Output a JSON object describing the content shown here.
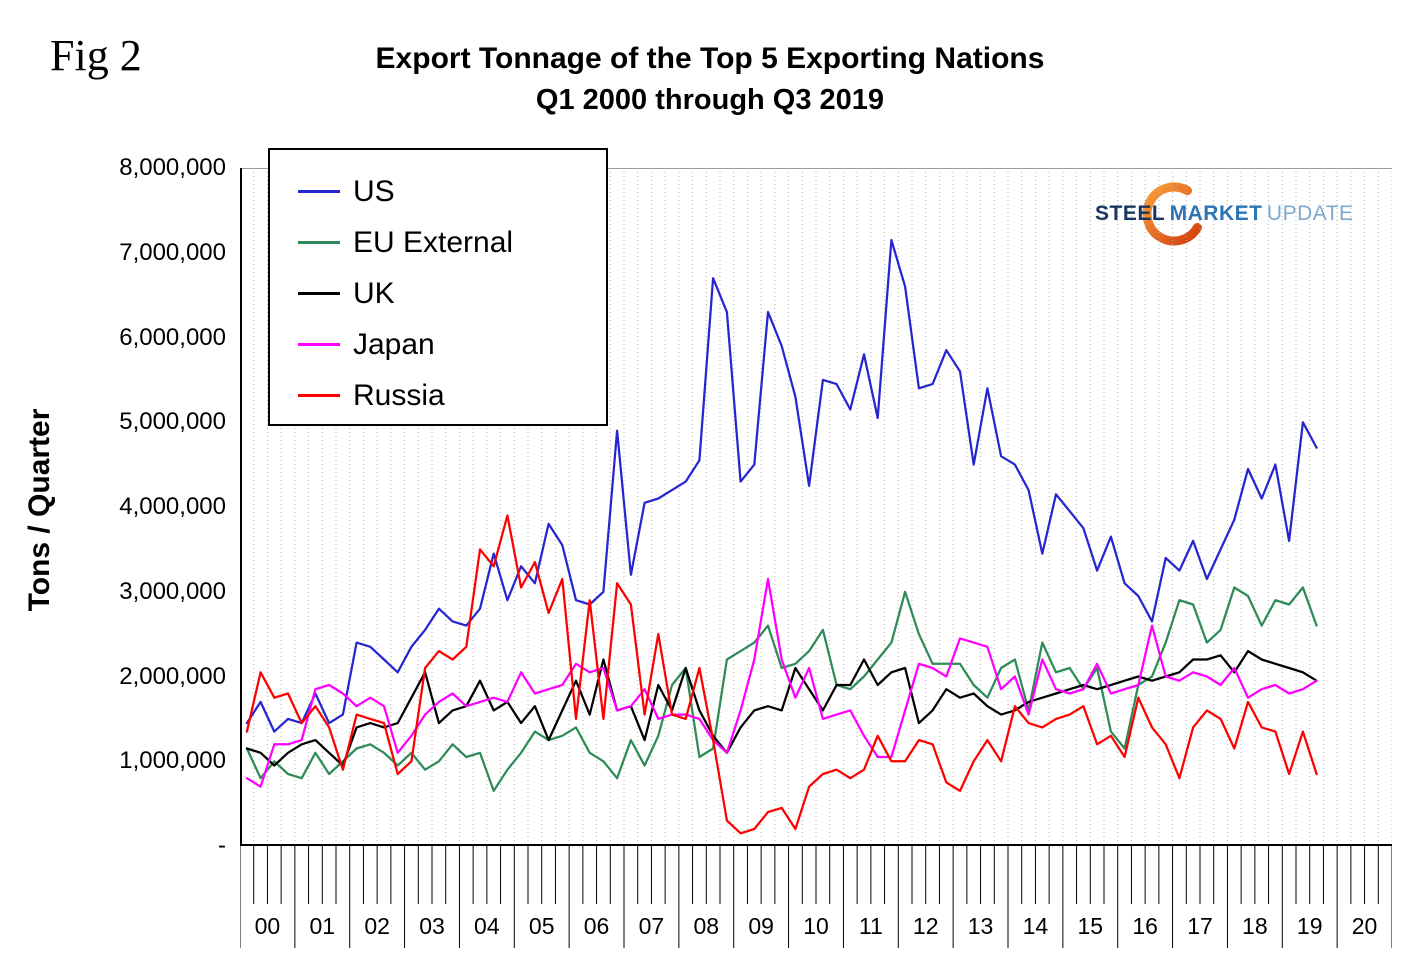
{
  "fig_label": "Fig 2",
  "title": {
    "line1": "Export Tonnage of the Top 5 Exporting Nations",
    "line2": "Q1 2000 through Q3 2019"
  },
  "y_axis_title": "Tons / Quarter",
  "logo": {
    "steel": "STEEL",
    "market": "MARKET",
    "update": "UPDATE",
    "steel_color": "#17375E",
    "market_color": "#2E74B5",
    "update_color": "#7FA8CC",
    "swoosh_color_start": "#F9A13A",
    "swoosh_color_end": "#D43D0E"
  },
  "chart_data": {
    "type": "line",
    "title": "Export Tonnage of the Top 5 Exporting Nations",
    "subtitle": "Q1 2000 through Q3 2019",
    "ylabel": "Tons / Quarter",
    "ylim": [
      0,
      8000000
    ],
    "y_tick_labels": [
      "8,000,000",
      "7,000,000",
      "6,000,000",
      "5,000,000",
      "4,000,000",
      "3,000,000",
      "2,000,000",
      "1,000,000",
      "-"
    ],
    "x_unit": "quarter",
    "x_start": "2000-Q1",
    "x_end": "2019-Q3",
    "quarters_per_year": 4,
    "x_year_labels": [
      "00",
      "01",
      "02",
      "03",
      "04",
      "05",
      "06",
      "07",
      "08",
      "09",
      "10",
      "11",
      "12",
      "13",
      "14",
      "15",
      "16",
      "17",
      "18",
      "19",
      "20"
    ],
    "grid": "vertical-dotted-per-quarter",
    "legend_position": "top-left-inside",
    "series": [
      {
        "name": "US",
        "color": "#2626D0",
        "values": [
          1450000,
          1700000,
          1350000,
          1500000,
          1450000,
          1800000,
          1450000,
          1550000,
          2400000,
          2350000,
          2200000,
          2050000,
          2350000,
          2550000,
          2800000,
          2650000,
          2600000,
          2800000,
          3450000,
          2900000,
          3300000,
          3100000,
          3800000,
          3550000,
          2900000,
          2850000,
          3000000,
          4900000,
          3200000,
          4050000,
          4100000,
          4200000,
          4300000,
          4550000,
          6700000,
          6300000,
          4300000,
          4500000,
          6300000,
          5900000,
          5300000,
          4250000,
          5500000,
          5450000,
          5150000,
          5800000,
          5050000,
          7150000,
          6600000,
          5400000,
          5450000,
          5850000,
          5600000,
          4500000,
          5400000,
          4600000,
          4500000,
          4200000,
          3450000,
          4150000,
          3950000,
          3750000,
          3250000,
          3650000,
          3100000,
          2950000,
          2650000,
          3400000,
          3250000,
          3600000,
          3150000,
          3500000,
          3850000,
          4450000,
          4100000,
          4500000,
          3600000,
          5000000,
          4700000
        ]
      },
      {
        "name": "EU External",
        "color": "#2E8B57",
        "values": [
          1150000,
          800000,
          1000000,
          850000,
          800000,
          1100000,
          850000,
          1000000,
          1150000,
          1200000,
          1100000,
          950000,
          1100000,
          900000,
          1000000,
          1200000,
          1050000,
          1100000,
          650000,
          900000,
          1100000,
          1350000,
          1250000,
          1300000,
          1400000,
          1100000,
          1000000,
          800000,
          1250000,
          950000,
          1300000,
          1900000,
          2100000,
          1050000,
          1150000,
          2200000,
          2300000,
          2400000,
          2600000,
          2100000,
          2150000,
          2300000,
          2550000,
          1900000,
          1850000,
          2000000,
          2200000,
          2400000,
          3000000,
          2500000,
          2150000,
          2150000,
          2150000,
          1900000,
          1750000,
          2100000,
          2200000,
          1600000,
          2400000,
          2050000,
          2100000,
          1850000,
          2100000,
          1350000,
          1150000,
          1900000,
          2000000,
          2400000,
          2900000,
          2850000,
          2400000,
          2550000,
          3050000,
          2950000,
          2600000,
          2900000,
          2850000,
          3050000,
          2600000
        ]
      },
      {
        "name": "UK",
        "color": "#000000",
        "values": [
          1150000,
          1100000,
          950000,
          1100000,
          1200000,
          1250000,
          1100000,
          950000,
          1400000,
          1450000,
          1400000,
          1450000,
          1750000,
          2050000,
          1450000,
          1600000,
          1650000,
          1950000,
          1600000,
          1700000,
          1450000,
          1650000,
          1250000,
          1600000,
          1950000,
          1550000,
          2200000,
          1600000,
          1650000,
          1250000,
          1900000,
          1600000,
          2100000,
          1600000,
          1300000,
          1100000,
          1400000,
          1600000,
          1650000,
          1600000,
          2100000,
          1850000,
          1600000,
          1900000,
          1900000,
          2200000,
          1900000,
          2050000,
          2100000,
          1450000,
          1600000,
          1850000,
          1750000,
          1800000,
          1650000,
          1550000,
          1600000,
          1700000,
          1750000,
          1800000,
          1850000,
          1900000,
          1850000,
          1900000,
          1950000,
          2000000,
          1950000,
          2000000,
          2050000,
          2200000,
          2200000,
          2250000,
          2050000,
          2300000,
          2200000,
          2150000,
          2100000,
          2050000,
          1950000
        ]
      },
      {
        "name": "Japan",
        "color": "#FF00FF",
        "values": [
          800000,
          700000,
          1200000,
          1200000,
          1250000,
          1850000,
          1900000,
          1800000,
          1650000,
          1750000,
          1650000,
          1100000,
          1300000,
          1550000,
          1700000,
          1800000,
          1650000,
          1700000,
          1750000,
          1700000,
          2050000,
          1800000,
          1850000,
          1900000,
          2150000,
          2050000,
          2100000,
          1600000,
          1650000,
          1850000,
          1500000,
          1550000,
          1550000,
          1500000,
          1250000,
          1100000,
          1600000,
          2200000,
          3150000,
          2200000,
          1750000,
          2100000,
          1500000,
          1550000,
          1600000,
          1300000,
          1050000,
          1050000,
          1600000,
          2150000,
          2100000,
          2000000,
          2450000,
          2400000,
          2350000,
          1850000,
          2000000,
          1550000,
          2200000,
          1850000,
          1800000,
          1850000,
          2150000,
          1800000,
          1850000,
          1900000,
          2600000,
          2000000,
          1950000,
          2050000,
          2000000,
          1900000,
          2100000,
          1750000,
          1850000,
          1900000,
          1800000,
          1850000,
          1950000
        ]
      },
      {
        "name": "Russia",
        "color": "#FF0000",
        "values": [
          1350000,
          2050000,
          1750000,
          1800000,
          1450000,
          1650000,
          1400000,
          900000,
          1550000,
          1500000,
          1450000,
          850000,
          1000000,
          2100000,
          2300000,
          2200000,
          2350000,
          3500000,
          3300000,
          3900000,
          3050000,
          3350000,
          2750000,
          3150000,
          1500000,
          2900000,
          1500000,
          3100000,
          2850000,
          1550000,
          2500000,
          1550000,
          1500000,
          2100000,
          1250000,
          300000,
          150000,
          200000,
          400000,
          450000,
          200000,
          700000,
          850000,
          900000,
          800000,
          900000,
          1300000,
          1000000,
          1000000,
          1250000,
          1200000,
          750000,
          650000,
          1000000,
          1250000,
          1000000,
          1650000,
          1450000,
          1400000,
          1500000,
          1550000,
          1650000,
          1200000,
          1300000,
          1050000,
          1750000,
          1400000,
          1200000,
          800000,
          1400000,
          1600000,
          1500000,
          1150000,
          1700000,
          1400000,
          1350000,
          850000,
          1350000,
          850000
        ]
      }
    ]
  }
}
